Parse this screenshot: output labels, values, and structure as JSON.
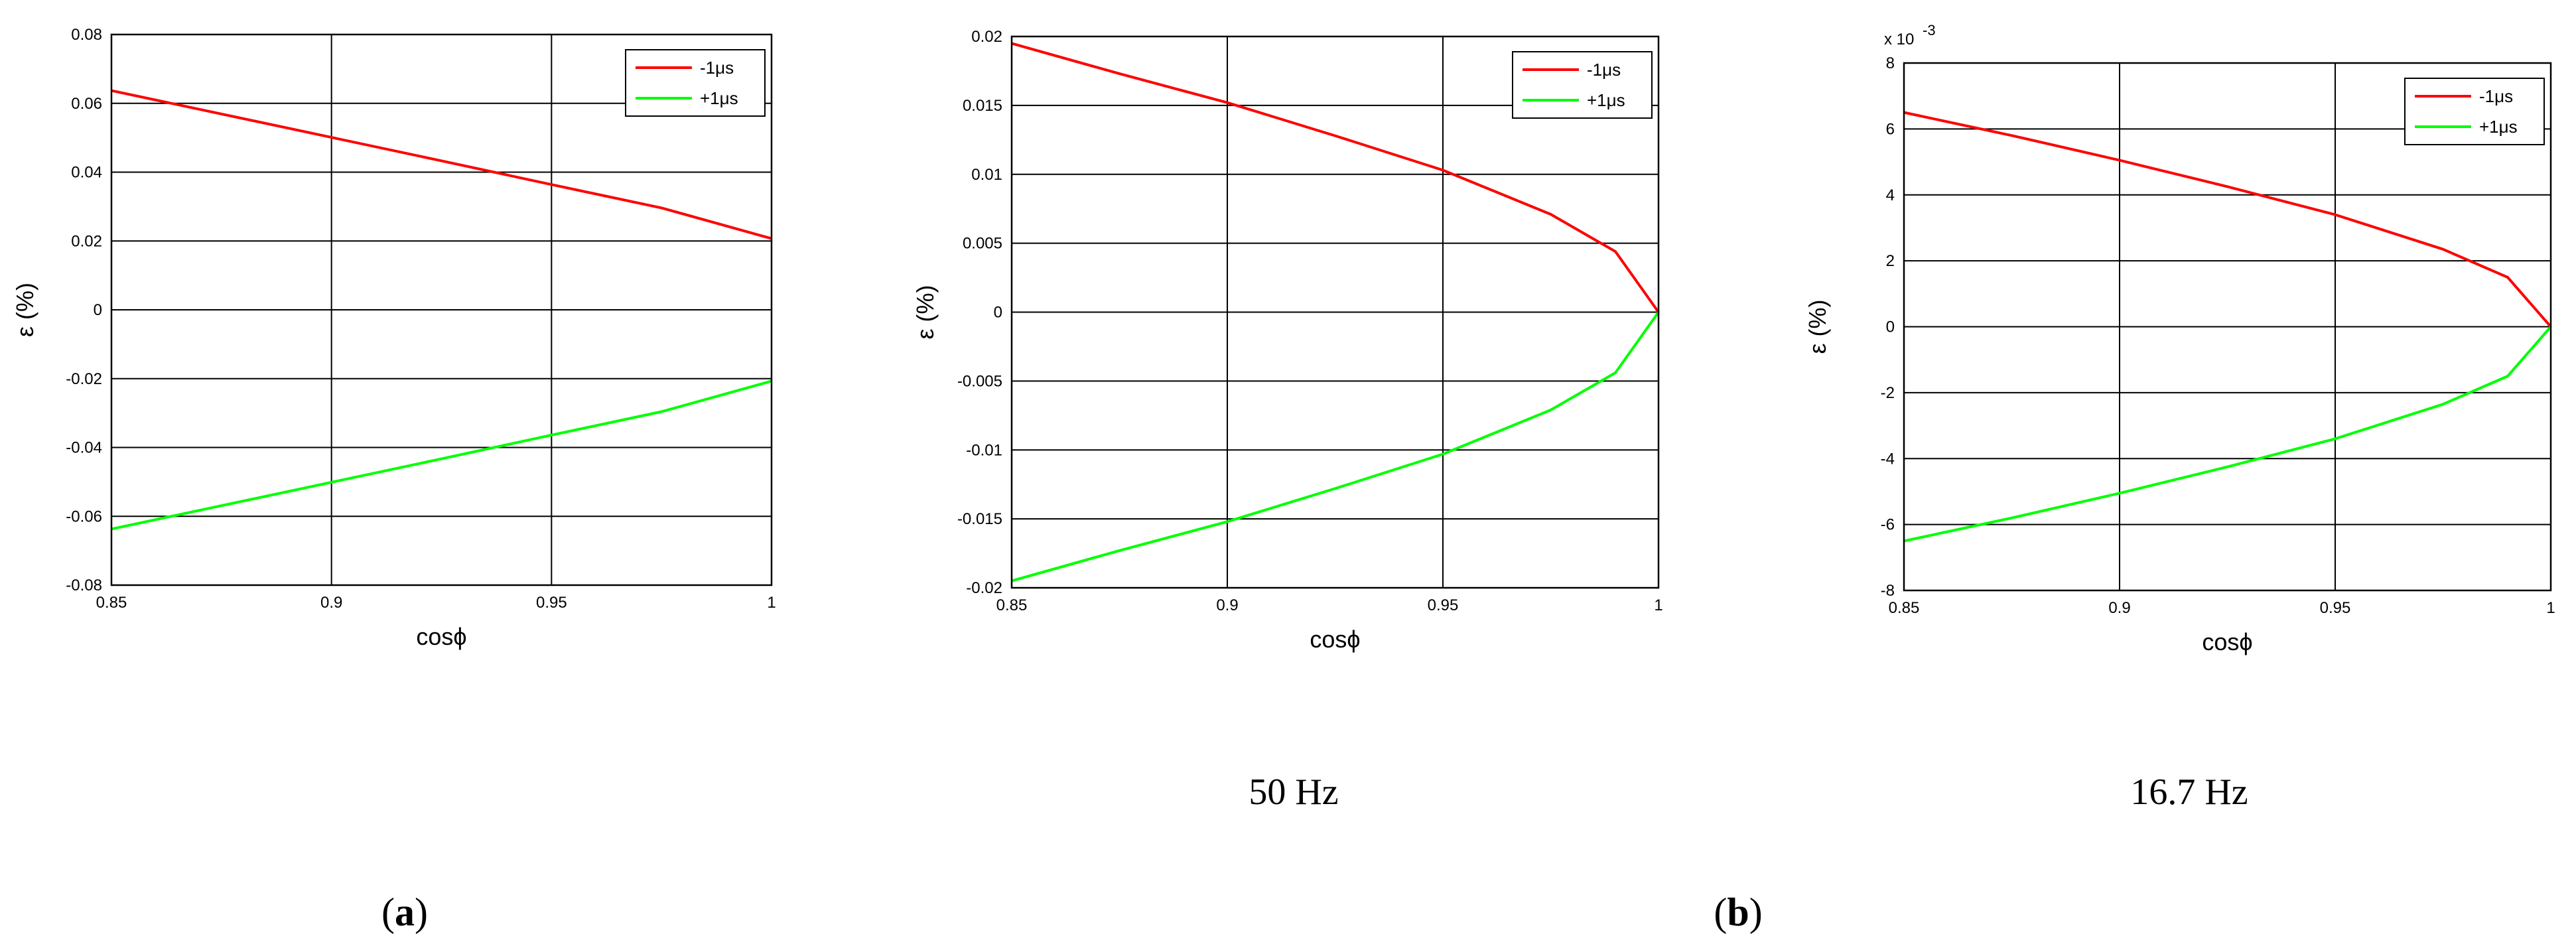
{
  "chart_data": [
    {
      "type": "line",
      "xlabel": "cosϕ",
      "ylabel": "ε (%)",
      "xlim": [
        0.85,
        1
      ],
      "ylim": [
        -0.08,
        0.08
      ],
      "xticks": [
        0.85,
        0.9,
        0.95,
        1
      ],
      "xtick_labels": [
        "0.85",
        "0.9",
        "0.95",
        "1"
      ],
      "yticks": [
        -0.08,
        -0.06,
        -0.04,
        -0.02,
        0,
        0.02,
        0.04,
        0.06,
        0.08
      ],
      "ytick_labels": [
        "-0.08",
        "-0.06",
        "-0.04",
        "-0.02",
        "0",
        "0.02",
        "0.04",
        "0.06",
        "0.08"
      ],
      "grid": true,
      "legend_position": "top-right",
      "caption": "",
      "series": [
        {
          "name": "-1μs",
          "color": "#ff0000",
          "x": [
            0.85,
            0.875,
            0.9,
            0.925,
            0.95,
            0.975,
            1.0
          ],
          "y": [
            0.0637,
            0.0569,
            0.0501,
            0.0433,
            0.0364,
            0.0296,
            0.0207
          ]
        },
        {
          "name": "+1μs",
          "color": "#00ff00",
          "x": [
            0.85,
            0.875,
            0.9,
            0.925,
            0.95,
            0.975,
            1.0
          ],
          "y": [
            -0.0637,
            -0.0569,
            -0.0501,
            -0.0433,
            -0.0364,
            -0.0296,
            -0.0207
          ]
        }
      ]
    },
    {
      "type": "line",
      "xlabel": "cosϕ",
      "ylabel": "ε (%)",
      "xlim": [
        0.85,
        1
      ],
      "ylim": [
        -0.02,
        0.02
      ],
      "xticks": [
        0.85,
        0.9,
        0.95,
        1
      ],
      "xtick_labels": [
        "0.85",
        "0.9",
        "0.95",
        "1"
      ],
      "yticks": [
        -0.02,
        -0.015,
        -0.01,
        -0.005,
        0,
        0.005,
        0.01,
        0.015,
        0.02
      ],
      "ytick_labels": [
        "-0.02",
        "-0.015",
        "-0.01",
        "-0.005",
        "0",
        "0.005",
        "0.01",
        "0.015",
        "0.02"
      ],
      "grid": true,
      "legend_position": "top-right",
      "caption": "50 Hz",
      "series": [
        {
          "name": "-1μs",
          "color": "#ff0000",
          "x": [
            0.85,
            0.875,
            0.9,
            0.925,
            0.95,
            0.975,
            0.99,
            1.0
          ],
          "y": [
            0.0195,
            0.0173,
            0.0152,
            0.0128,
            0.0103,
            0.0071,
            0.0044,
            0.0
          ]
        },
        {
          "name": "+1μs",
          "color": "#00ff00",
          "x": [
            0.85,
            0.875,
            0.9,
            0.925,
            0.95,
            0.975,
            0.99,
            1.0
          ],
          "y": [
            -0.0195,
            -0.0173,
            -0.0152,
            -0.0128,
            -0.0103,
            -0.0071,
            -0.0044,
            0.0
          ]
        }
      ]
    },
    {
      "type": "line",
      "xlabel": "cosϕ",
      "ylabel": "ε (%)",
      "y_scale_note": "x 10",
      "y_scale_exponent": "-3",
      "xlim": [
        0.85,
        1
      ],
      "ylim": [
        -8,
        8
      ],
      "xticks": [
        0.85,
        0.9,
        0.95,
        1
      ],
      "xtick_labels": [
        "0.85",
        "0.9",
        "0.95",
        "1"
      ],
      "yticks": [
        -8,
        -6,
        -4,
        -2,
        0,
        2,
        4,
        6,
        8
      ],
      "ytick_labels": [
        "-8",
        "-6",
        "-4",
        "-2",
        "0",
        "2",
        "4",
        "6",
        "8"
      ],
      "grid": true,
      "legend_position": "top-right",
      "caption": "16.7 Hz",
      "series": [
        {
          "name": "-1μs",
          "color": "#ff0000",
          "x": [
            0.85,
            0.875,
            0.9,
            0.925,
            0.95,
            0.975,
            0.99,
            1.0
          ],
          "y": [
            6.5,
            5.8,
            5.05,
            4.25,
            3.4,
            2.35,
            1.5,
            0.0
          ]
        },
        {
          "name": "+1μs",
          "color": "#00ff00",
          "x": [
            0.85,
            0.875,
            0.9,
            0.925,
            0.95,
            0.975,
            0.99,
            1.0
          ],
          "y": [
            -6.5,
            -5.8,
            -5.05,
            -4.25,
            -3.4,
            -2.35,
            -1.5,
            0.0
          ]
        }
      ]
    }
  ],
  "panel_labels": {
    "a": {
      "open": "(",
      "letter": "a",
      "close": ")"
    },
    "b": {
      "open": "(",
      "letter": "b",
      "close": ")"
    }
  }
}
